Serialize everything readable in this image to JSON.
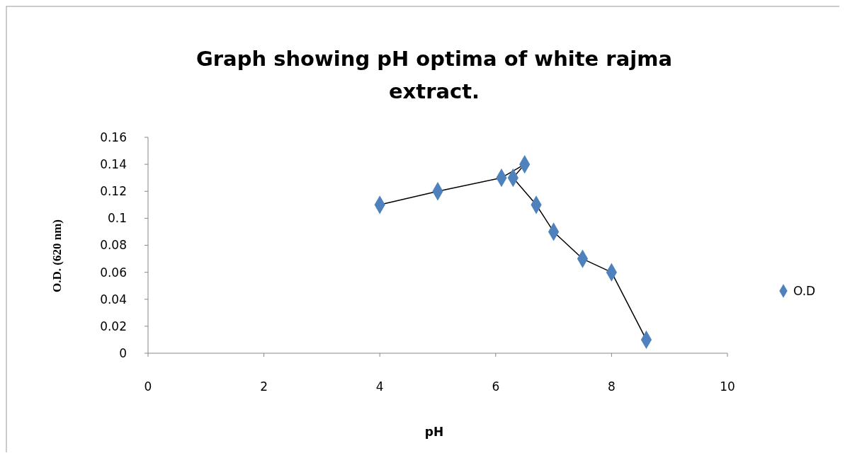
{
  "chart_data": {
    "type": "line",
    "title": "Graph showing pH optima of white rajma extract.",
    "xlabel": "pH",
    "ylabel": "O.D. (620 nm)",
    "x": [
      4,
      5,
      6.1,
      6.5,
      6.3,
      6.7,
      7,
      7.5,
      8,
      8.6
    ],
    "series": [
      {
        "name": "O.D",
        "color": "#4f81bd",
        "values": [
          0.11,
          0.12,
          0.13,
          0.14,
          0.13,
          0.11,
          0.09,
          0.07,
          0.06,
          0.01
        ]
      }
    ],
    "xlim": [
      0,
      10
    ],
    "xticks": [
      0,
      2,
      4,
      6,
      8,
      10
    ],
    "ylim": [
      0,
      0.16
    ],
    "yticks": [
      0,
      0.02,
      0.04,
      0.06,
      0.08,
      0.1,
      0.12,
      0.14,
      0.16
    ],
    "marker": "diamond",
    "legend": "right",
    "grid": false
  }
}
